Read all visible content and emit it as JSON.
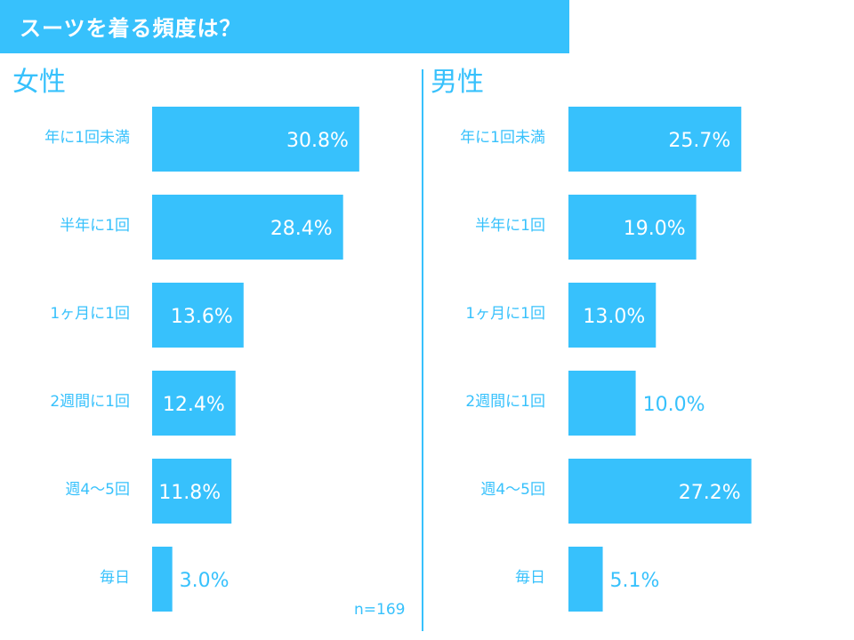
{
  "title": "スーツを着る頻度は？",
  "note": "n=169",
  "colors": {
    "accent": "#37c1fc",
    "bar": "#37c1fc",
    "text": "#37c1fc",
    "background": "#ffffff"
  },
  "chart_data": [
    {
      "type": "bar",
      "orientation": "horizontal",
      "title": "女性",
      "categories": [
        "年に1回未満",
        "半年に1回",
        "1ヶ月に1回",
        "2週間に1回",
        "週4～5回",
        "毎日"
      ],
      "values": [
        30.8,
        28.4,
        13.6,
        12.4,
        11.8,
        3.0
      ],
      "labels": [
        "30.8%",
        "28.4%",
        "13.6%",
        "12.4%",
        "11.8%",
        "3.0%"
      ],
      "unit": "%"
    },
    {
      "type": "bar",
      "orientation": "horizontal",
      "title": "男性",
      "categories": [
        "年に1回未満",
        "半年に1回",
        "1ヶ月に1回",
        "2週間に1回",
        "週4～5回",
        "毎日"
      ],
      "values": [
        25.7,
        19.0,
        13.0,
        10.0,
        27.2,
        5.1
      ],
      "labels": [
        "25.7%",
        "19.0%",
        "13.0%",
        "10.0%",
        "27.2%",
        "5.1%"
      ],
      "unit": "%"
    }
  ]
}
